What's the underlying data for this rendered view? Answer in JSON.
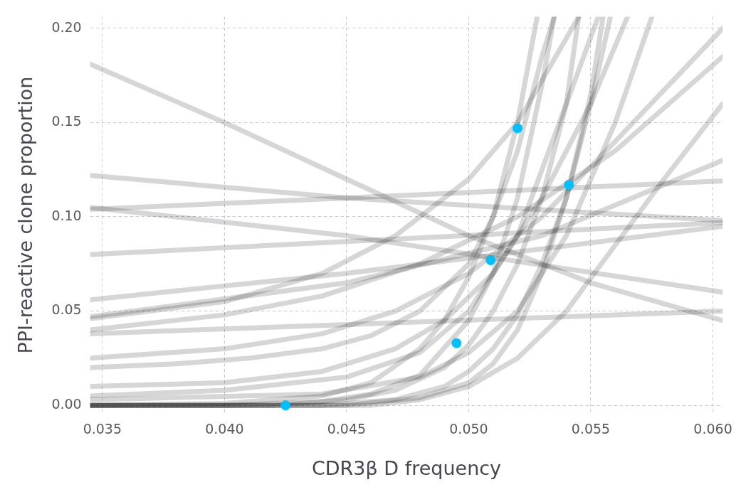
{
  "chart_data": {
    "type": "line",
    "xlabel": "CDR3β D frequency",
    "ylabel": "PPI-reactive clone proportion",
    "xlim": [
      0.0345,
      0.0604
    ],
    "ylim": [
      -0.0044,
      0.2062
    ],
    "xticks": [
      0.035,
      {
        "value": 0.04,
        "label": "0.040"
      },
      0.045,
      {
        "value": 0.05,
        "label": "0.050"
      },
      0.055,
      {
        "value": 0.06,
        "label": "0.060"
      }
    ],
    "yticks": [
      {
        "value": 0,
        "label": "0.00"
      },
      0.05,
      {
        "value": 0.1,
        "label": "0.10"
      },
      0.15,
      {
        "value": 0.2,
        "label": "0.20"
      }
    ],
    "grid": true,
    "line_style": "solid",
    "series": [
      {
        "color": "#000000",
        "marker": "none",
        "x": [
          0.0345,
          0.04,
          0.044,
          0.046,
          0.048,
          0.049,
          0.05,
          0.051,
          0.052,
          0.0528
        ],
        "values": [
          0,
          0.001,
          0.005,
          0.012,
          0.03,
          0.045,
          0.068,
          0.1,
          0.15,
          0.206
        ]
      },
      {
        "color": "#000000",
        "marker": "none",
        "x": [
          0.0345,
          0.04,
          0.044,
          0.046,
          0.048,
          0.05,
          0.051,
          0.052,
          0.053,
          0.0535
        ],
        "values": [
          0,
          0,
          0.002,
          0.006,
          0.016,
          0.045,
          0.07,
          0.11,
          0.17,
          0.206
        ]
      },
      {
        "color": "#000000",
        "marker": "none",
        "x": [
          0.0345,
          0.042,
          0.045,
          0.047,
          0.049,
          0.05,
          0.051,
          0.052,
          0.053,
          0.054,
          0.0545
        ],
        "values": [
          0,
          0,
          0.003,
          0.008,
          0.02,
          0.032,
          0.05,
          0.075,
          0.11,
          0.16,
          0.206
        ]
      },
      {
        "color": "#000000",
        "marker": "none",
        "x": [
          0.0345,
          0.044,
          0.047,
          0.049,
          0.05,
          0.051,
          0.052,
          0.053,
          0.054,
          0.055,
          0.0555
        ],
        "values": [
          0,
          0,
          0.003,
          0.01,
          0.018,
          0.03,
          0.048,
          0.075,
          0.11,
          0.165,
          0.206
        ]
      },
      {
        "color": "#000000",
        "marker": "none",
        "x": [
          0.0345,
          0.045,
          0.048,
          0.05,
          0.051,
          0.052,
          0.053,
          0.054,
          0.055,
          0.0558
        ],
        "values": [
          0,
          0,
          0.004,
          0.012,
          0.022,
          0.04,
          0.07,
          0.11,
          0.16,
          0.206
        ]
      },
      {
        "color": "#000000",
        "marker": "none",
        "x": [
          0.0345,
          0.038,
          0.041,
          0.044,
          0.046,
          0.048,
          0.05,
          0.051,
          0.052,
          0.053,
          0.0535
        ],
        "values": [
          0.02,
          0.022,
          0.025,
          0.03,
          0.037,
          0.05,
          0.075,
          0.1,
          0.135,
          0.185,
          0.206
        ]
      },
      {
        "color": "#000000",
        "marker": "none",
        "x": [
          0.0345,
          0.04,
          0.044,
          0.047,
          0.049,
          0.051,
          0.053,
          0.055,
          0.0565
        ],
        "values": [
          0.01,
          0.012,
          0.018,
          0.03,
          0.045,
          0.07,
          0.11,
          0.16,
          0.206
        ]
      },
      {
        "color": "#000000",
        "marker": "none",
        "x": [
          0.0345,
          0.04,
          0.044,
          0.047,
          0.05,
          0.053,
          0.056,
          0.0604
        ],
        "values": [
          0.025,
          0.03,
          0.038,
          0.05,
          0.07,
          0.1,
          0.14,
          0.2
        ]
      },
      {
        "color": "#000000",
        "marker": "none",
        "x": [
          0.0345,
          0.04,
          0.044,
          0.048,
          0.052,
          0.056,
          0.0604
        ],
        "values": [
          0.04,
          0.048,
          0.058,
          0.075,
          0.1,
          0.135,
          0.185
        ]
      },
      {
        "color": "#000000",
        "marker": "none",
        "x": [
          0.0345,
          0.045,
          0.0604
        ],
        "values": [
          0.122,
          0.11,
          0.098
        ]
      },
      {
        "color": "#000000",
        "marker": "none",
        "x": [
          0.0345,
          0.045,
          0.0604
        ],
        "values": [
          0.104,
          0.11,
          0.119
        ]
      },
      {
        "color": "#000000",
        "marker": "none",
        "x": [
          0.0345,
          0.04,
          0.045,
          0.05,
          0.055,
          0.0604
        ],
        "values": [
          0.181,
          0.15,
          0.12,
          0.09,
          0.065,
          0.045
        ]
      },
      {
        "color": "#000000",
        "marker": "none",
        "x": [
          0.0345,
          0.0604
        ],
        "values": [
          0.08,
          0.097
        ]
      },
      {
        "color": "#000000",
        "marker": "none",
        "x": [
          0.0345,
          0.045,
          0.0604
        ],
        "values": [
          0.056,
          0.07,
          0.095
        ]
      },
      {
        "color": "#000000",
        "marker": "none",
        "x": [
          0.0345,
          0.045,
          0.053,
          0.0604
        ],
        "values": [
          0.047,
          0.065,
          0.09,
          0.13
        ]
      },
      {
        "color": "#000000",
        "marker": "none",
        "x": [
          0.0345,
          0.0604
        ],
        "values": [
          0.038,
          0.05
        ]
      },
      {
        "color": "#000000",
        "marker": "none",
        "x": [
          0.0345,
          0.045,
          0.0604
        ],
        "values": [
          0.105,
          0.09,
          0.06
        ]
      },
      {
        "color": "#000000",
        "marker": "none",
        "x": [
          0.0345,
          0.04,
          0.044,
          0.047,
          0.05,
          0.052,
          0.0545
        ],
        "values": [
          0.046,
          0.055,
          0.07,
          0.09,
          0.12,
          0.15,
          0.206
        ]
      },
      {
        "color": "#000000",
        "marker": "none",
        "x": [
          0.0345,
          0.046,
          0.048,
          0.05,
          0.052,
          0.054,
          0.056,
          0.058,
          0.0604
        ],
        "values": [
          0,
          0,
          0.003,
          0.01,
          0.025,
          0.05,
          0.085,
          0.12,
          0.16
        ]
      },
      {
        "color": "#000000",
        "marker": "none",
        "x": [
          0.0345,
          0.044,
          0.048,
          0.05,
          0.052,
          0.054,
          0.056,
          0.0575
        ],
        "values": [
          0.003,
          0.006,
          0.015,
          0.028,
          0.05,
          0.09,
          0.15,
          0.206
        ]
      },
      {
        "color": "#000000",
        "marker": "none",
        "x": [
          0.0345,
          0.04,
          0.045,
          0.048,
          0.05,
          0.052,
          0.054,
          0.0553
        ],
        "values": [
          0.005,
          0.008,
          0.015,
          0.028,
          0.05,
          0.09,
          0.16,
          0.206
        ]
      },
      {
        "type": "scatter",
        "color": "#00bfff",
        "marker": "circle",
        "x": [
          0.0425,
          0.0495,
          0.0509,
          0.052,
          0.0541
        ],
        "values": [
          0.0,
          0.033,
          0.077,
          0.147,
          0.117
        ]
      }
    ]
  }
}
